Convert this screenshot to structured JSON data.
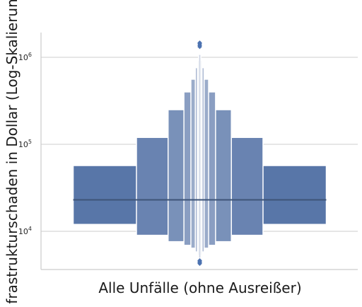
{
  "chart_data": {
    "type": "boxen",
    "title": "",
    "xlabel": "Alle Unfälle (ohne Ausreißer)",
    "ylabel": "Infrastrukturschaden in Dollar (Log-Skalierung)",
    "y_scale": "log",
    "ylim": [
      3600,
      1900000
    ],
    "yticks": [
      {
        "value": 10000,
        "base": "10",
        "exp": "4"
      },
      {
        "value": 100000,
        "base": "10",
        "exp": "5"
      },
      {
        "value": 1000000,
        "base": "10",
        "exp": "6"
      }
    ],
    "grid": "y-major",
    "median": 23000,
    "letter_values": [
      {
        "lower": 12000,
        "upper": 57000,
        "width": 1.0
      },
      {
        "lower": 9000,
        "upper": 120000,
        "width": 0.5
      },
      {
        "lower": 7600,
        "upper": 250000,
        "width": 0.25
      },
      {
        "lower": 6900,
        "upper": 400000,
        "width": 0.125
      },
      {
        "lower": 6400,
        "upper": 560000,
        "width": 0.07
      },
      {
        "lower": 5800,
        "upper": 760000,
        "width": 0.035
      },
      {
        "lower": 5300,
        "upper": 920000,
        "width": 0.018
      },
      {
        "lower": 4900,
        "upper": 1080000,
        "width": 0.009
      }
    ],
    "outliers": [
      4250,
      4350,
      4450,
      4560,
      4620,
      1320000,
      1360000,
      1400000,
      1440000,
      1470000
    ],
    "colors": {
      "box": "#4c72b0",
      "median": "#3e5478",
      "grid": "#cccccc",
      "axis": "#cccccc"
    }
  }
}
